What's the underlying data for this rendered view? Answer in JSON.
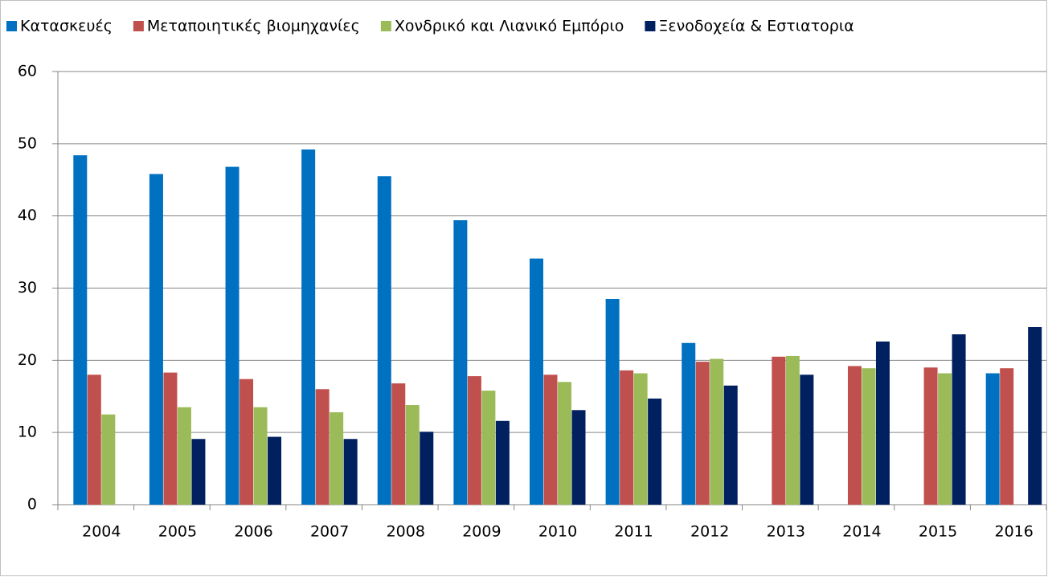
{
  "chart_data": {
    "type": "bar",
    "categories": [
      "2004",
      "2005",
      "2006",
      "2007",
      "2008",
      "2009",
      "2010",
      "2011",
      "2012",
      "2013",
      "2014",
      "2015",
      "2016"
    ],
    "series": [
      {
        "name": "Κατασκευές",
        "color": "#0070C0",
        "values": [
          48.4,
          45.8,
          46.8,
          49.2,
          45.5,
          39.4,
          34.1,
          28.5,
          22.4,
          null,
          null,
          null,
          18.2
        ]
      },
      {
        "name": "Μεταποιητικές βιομηχανίες",
        "color": "#C0504D",
        "values": [
          18.0,
          18.3,
          17.4,
          16.0,
          16.8,
          17.8,
          18.0,
          18.6,
          19.8,
          20.5,
          19.2,
          19.0,
          18.9
        ]
      },
      {
        "name": "Χονδρικό και Λιανικό Εμπόριο",
        "color": "#9BBB59",
        "values": [
          12.5,
          13.5,
          13.5,
          12.8,
          13.8,
          15.8,
          17.0,
          18.2,
          20.2,
          20.6,
          18.9,
          18.2,
          null
        ]
      },
      {
        "name": "Ξενοδοχεία & Εστιατορια",
        "color": "#002060",
        "values": [
          null,
          9.1,
          9.4,
          9.1,
          10.1,
          11.6,
          13.1,
          14.7,
          16.5,
          18.0,
          22.6,
          23.6,
          24.6
        ]
      }
    ],
    "ylim": [
      0,
      60
    ],
    "yticks": [
      0,
      10,
      20,
      30,
      40,
      50,
      60
    ],
    "grid": true,
    "legend": "top"
  }
}
